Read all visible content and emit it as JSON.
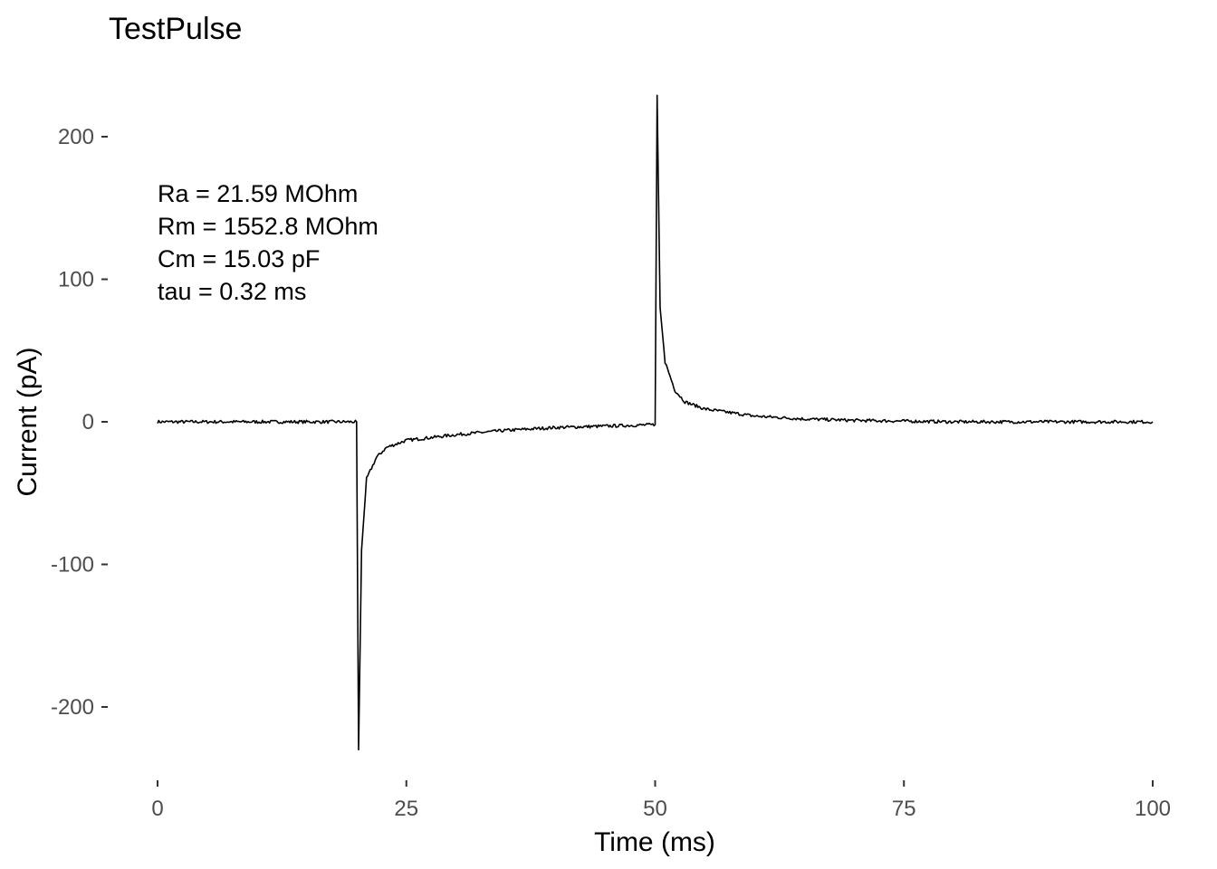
{
  "chart_data": {
    "type": "line",
    "title": "TestPulse",
    "xlabel": "Time (ms)",
    "ylabel": "Current (pA)",
    "xlim": [
      0,
      100
    ],
    "ylim": [
      -230,
      230
    ],
    "x_ticks": [
      0,
      25,
      50,
      75,
      100
    ],
    "x_tick_labels": [
      "0",
      "25",
      "50",
      "75",
      "100"
    ],
    "y_ticks": [
      200,
      100,
      0,
      -100,
      -200
    ],
    "y_tick_labels": [
      "200",
      "100",
      "0",
      "-100",
      "-200"
    ],
    "grid": false,
    "legend": "none",
    "annotations": [
      "Ra = 21.59 MOhm",
      "Rm = 1552.8 MOhm",
      "Cm = 15.03 pF",
      "tau = 0.32 ms"
    ],
    "line_color": "#000000",
    "series": [
      {
        "x": [
          0,
          20,
          20.2,
          20.5,
          21,
          22,
          23,
          25,
          30,
          35,
          40,
          45,
          50,
          50.2,
          50.5,
          51,
          52,
          53,
          55,
          60,
          65,
          70,
          75,
          80,
          90,
          100
        ],
        "values": [
          0,
          0,
          -230,
          -90,
          -40,
          -25,
          -18,
          -13,
          -9,
          -6,
          -4,
          -3,
          -2,
          229,
          80,
          42,
          22,
          14,
          9,
          4,
          2,
          1,
          0.5,
          0,
          0,
          0
        ]
      }
    ]
  }
}
